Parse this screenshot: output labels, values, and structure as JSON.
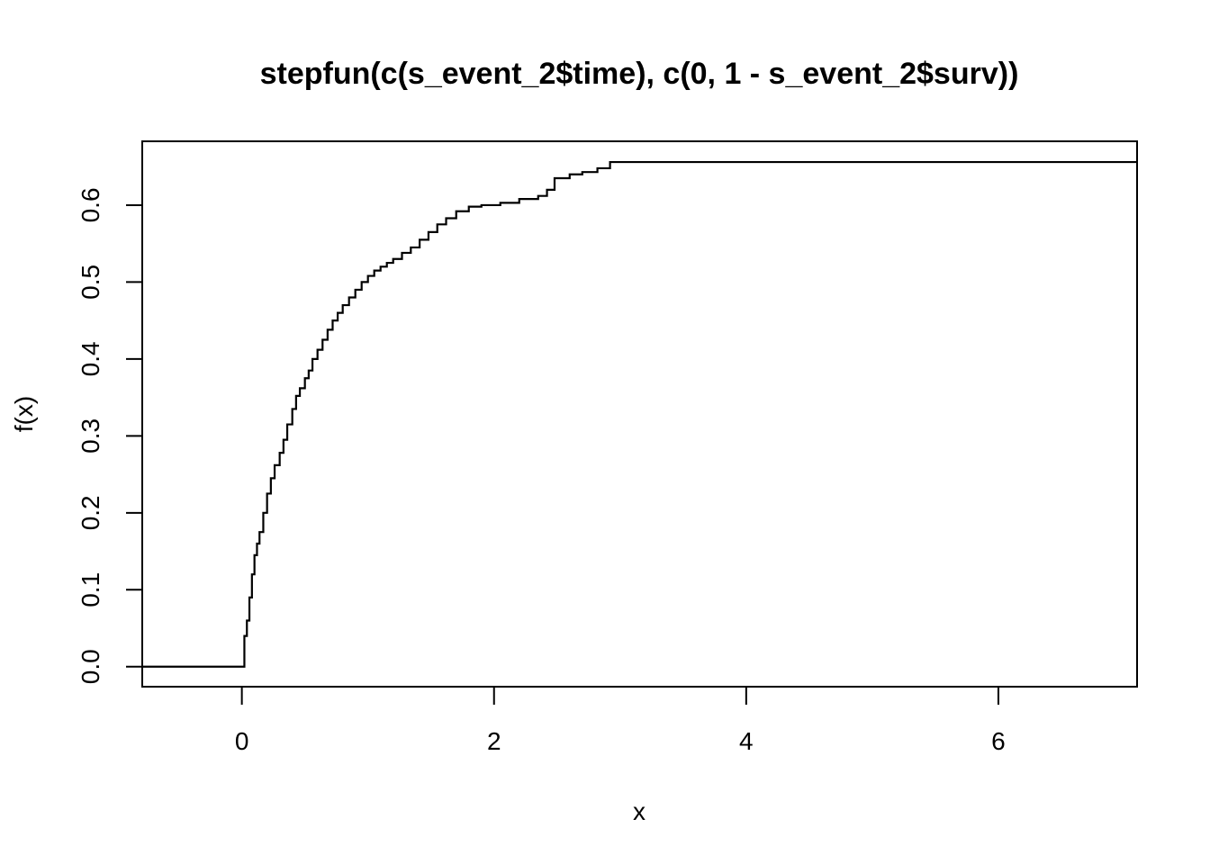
{
  "chart_data": {
    "type": "line",
    "title": "stepfun(c(s_event_2$time), c(0, 1 - s_event_2$surv))",
    "xlabel": "x",
    "ylabel": "f(x)",
    "xlim": [
      -0.79,
      7.1
    ],
    "ylim": [
      -0.026,
      0.683
    ],
    "x_ticks": [
      0,
      2,
      4,
      6
    ],
    "x_tick_labels": [
      "0",
      "2",
      "4",
      "6"
    ],
    "y_ticks": [
      0.0,
      0.1,
      0.2,
      0.3,
      0.4,
      0.5,
      0.6
    ],
    "y_tick_labels": [
      "0.0",
      "0.1",
      "0.2",
      "0.3",
      "0.4",
      "0.5",
      "0.6"
    ],
    "grid": false,
    "legend": "none",
    "line_color": "#000000",
    "series": [
      {
        "step": "post",
        "x": [
          -0.79,
          0.0,
          0.02,
          0.04,
          0.06,
          0.08,
          0.1,
          0.12,
          0.14,
          0.17,
          0.2,
          0.23,
          0.26,
          0.3,
          0.33,
          0.36,
          0.4,
          0.43,
          0.46,
          0.5,
          0.53,
          0.56,
          0.6,
          0.64,
          0.68,
          0.72,
          0.76,
          0.8,
          0.85,
          0.9,
          0.95,
          1.0,
          1.05,
          1.1,
          1.15,
          1.2,
          1.27,
          1.34,
          1.41,
          1.48,
          1.55,
          1.62,
          1.7,
          1.8,
          1.9,
          2.05,
          2.2,
          2.35,
          2.42,
          2.48,
          2.6,
          2.7,
          2.82,
          2.92,
          7.1
        ],
        "y": [
          0.0,
          0.0,
          0.04,
          0.06,
          0.09,
          0.12,
          0.145,
          0.16,
          0.175,
          0.2,
          0.225,
          0.245,
          0.262,
          0.278,
          0.295,
          0.315,
          0.335,
          0.352,
          0.362,
          0.375,
          0.385,
          0.4,
          0.412,
          0.425,
          0.438,
          0.45,
          0.46,
          0.47,
          0.48,
          0.49,
          0.5,
          0.508,
          0.515,
          0.52,
          0.525,
          0.53,
          0.538,
          0.545,
          0.555,
          0.565,
          0.575,
          0.583,
          0.592,
          0.598,
          0.6,
          0.603,
          0.608,
          0.612,
          0.62,
          0.635,
          0.64,
          0.643,
          0.648,
          0.656,
          0.656
        ]
      }
    ]
  }
}
